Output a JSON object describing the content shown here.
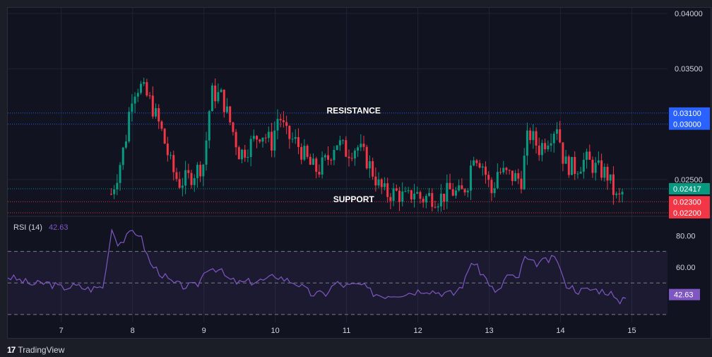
{
  "chart_data": [
    {
      "type": "candlestick",
      "ylim": [
        0.022,
        0.0405
      ],
      "y_ticks": [
        "0.04000",
        "0.03500",
        "0.02500"
      ],
      "x_ticks": [
        "7",
        "8",
        "9",
        "10",
        "11",
        "12",
        "13",
        "14",
        "15"
      ],
      "x_tick_positions": [
        7,
        8,
        9,
        10,
        11,
        12,
        13,
        14,
        15
      ],
      "xlim": [
        6.25,
        15.5
      ],
      "price_lines": [
        {
          "label": "0.03100",
          "value": 0.031,
          "color": "#2962ff"
        },
        {
          "label": "0.03000",
          "value": 0.03,
          "color": "#2962ff"
        },
        {
          "label": "0.02417",
          "value": 0.02417,
          "color": "#089981"
        },
        {
          "label": "0.02300",
          "value": 0.023,
          "color": "#f23645"
        },
        {
          "label": "0.02200",
          "value": 0.022,
          "color": "#f23645"
        }
      ],
      "annotations": [
        {
          "text": "RESISTANCE",
          "x": 11.1,
          "y": 0.03095
        },
        {
          "text": "SUPPORT",
          "x": 11.1,
          "y": 0.02295
        }
      ],
      "keypoints": [
        [
          7.7,
          0.0237
        ],
        [
          7.8,
          0.0258
        ],
        [
          7.9,
          0.0285
        ],
        [
          7.95,
          0.031
        ],
        [
          8.0,
          0.033
        ],
        [
          8.1,
          0.0335
        ],
        [
          8.25,
          0.032
        ],
        [
          8.4,
          0.0295
        ],
        [
          8.55,
          0.026
        ],
        [
          8.65,
          0.0247
        ],
        [
          8.8,
          0.0252
        ],
        [
          9.0,
          0.0265
        ],
        [
          9.1,
          0.0328
        ],
        [
          9.25,
          0.0325
        ],
        [
          9.4,
          0.0295
        ],
        [
          9.5,
          0.0273
        ],
        [
          9.6,
          0.0278
        ],
        [
          9.8,
          0.0293
        ],
        [
          9.95,
          0.0283
        ],
        [
          10.05,
          0.031
        ],
        [
          10.15,
          0.029
        ],
        [
          10.3,
          0.0283
        ],
        [
          10.5,
          0.0262
        ],
        [
          10.6,
          0.0258
        ],
        [
          10.75,
          0.027
        ],
        [
          10.85,
          0.0285
        ],
        [
          11.0,
          0.0275
        ],
        [
          11.15,
          0.028
        ],
        [
          11.3,
          0.0266
        ],
        [
          11.45,
          0.0245
        ],
        [
          11.55,
          0.0237
        ],
        [
          11.7,
          0.0238
        ],
        [
          11.85,
          0.0232
        ],
        [
          11.95,
          0.024
        ],
        [
          12.05,
          0.0232
        ],
        [
          12.15,
          0.0235
        ],
        [
          12.3,
          0.0233
        ],
        [
          12.45,
          0.024
        ],
        [
          12.6,
          0.0236
        ],
        [
          12.7,
          0.0248
        ],
        [
          12.78,
          0.0275
        ],
        [
          12.9,
          0.0265
        ],
        [
          13.05,
          0.0235
        ],
        [
          13.1,
          0.0258
        ],
        [
          13.3,
          0.0253
        ],
        [
          13.45,
          0.025
        ],
        [
          13.55,
          0.0293
        ],
        [
          13.7,
          0.0278
        ],
        [
          13.85,
          0.029
        ],
        [
          13.95,
          0.03
        ],
        [
          14.05,
          0.0265
        ],
        [
          14.2,
          0.026
        ],
        [
          14.35,
          0.0268
        ],
        [
          14.5,
          0.026
        ],
        [
          14.65,
          0.0255
        ],
        [
          14.75,
          0.0238
        ],
        [
          14.8,
          0.023
        ],
        [
          14.9,
          0.02417
        ]
      ]
    },
    {
      "type": "line",
      "title": "RSI (14)",
      "value_label": "42.63",
      "ylim": [
        25,
        90
      ],
      "y_ticks": [
        "80.00",
        "60.00"
      ],
      "y_tick_values": [
        80,
        60
      ],
      "band_lines": [
        70,
        50,
        30
      ],
      "color": "#7e57c2",
      "keypoints": [
        [
          6.25,
          54
        ],
        [
          6.4,
          52
        ],
        [
          6.6,
          49
        ],
        [
          6.8,
          50
        ],
        [
          7.0,
          47
        ],
        [
          7.2,
          48
        ],
        [
          7.4,
          46
        ],
        [
          7.6,
          48
        ],
        [
          7.7,
          85
        ],
        [
          7.8,
          75
        ],
        [
          7.9,
          78
        ],
        [
          8.0,
          83
        ],
        [
          8.1,
          81
        ],
        [
          8.25,
          62
        ],
        [
          8.4,
          56
        ],
        [
          8.55,
          50
        ],
        [
          8.7,
          48
        ],
        [
          8.9,
          48
        ],
        [
          9.05,
          60
        ],
        [
          9.2,
          59
        ],
        [
          9.35,
          52
        ],
        [
          9.5,
          50
        ],
        [
          9.7,
          51
        ],
        [
          9.9,
          52
        ],
        [
          10.0,
          55
        ],
        [
          10.15,
          52
        ],
        [
          10.3,
          50
        ],
        [
          10.5,
          43
        ],
        [
          10.7,
          43
        ],
        [
          10.85,
          50
        ],
        [
          11.0,
          48
        ],
        [
          11.2,
          49
        ],
        [
          11.35,
          44
        ],
        [
          11.5,
          42
        ],
        [
          11.7,
          43
        ],
        [
          11.9,
          44
        ],
        [
          12.1,
          46
        ],
        [
          12.3,
          44
        ],
        [
          12.5,
          43
        ],
        [
          12.65,
          50
        ],
        [
          12.75,
          64
        ],
        [
          12.9,
          56
        ],
        [
          13.0,
          50
        ],
        [
          13.1,
          42
        ],
        [
          13.25,
          55
        ],
        [
          13.4,
          52
        ],
        [
          13.5,
          66
        ],
        [
          13.6,
          62
        ],
        [
          13.8,
          64
        ],
        [
          13.95,
          66
        ],
        [
          14.05,
          50
        ],
        [
          14.25,
          45
        ],
        [
          14.45,
          46
        ],
        [
          14.6,
          45
        ],
        [
          14.7,
          44
        ],
        [
          14.8,
          37
        ],
        [
          14.92,
          42.63
        ]
      ]
    }
  ],
  "footer": {
    "logo_mark": "17",
    "brand": "TradingView"
  },
  "colors": {
    "up": "#089981",
    "down": "#f23645",
    "grid": "#1f2330",
    "resistance_line": "#2962ff",
    "rsi_band": "#7e57c2"
  }
}
